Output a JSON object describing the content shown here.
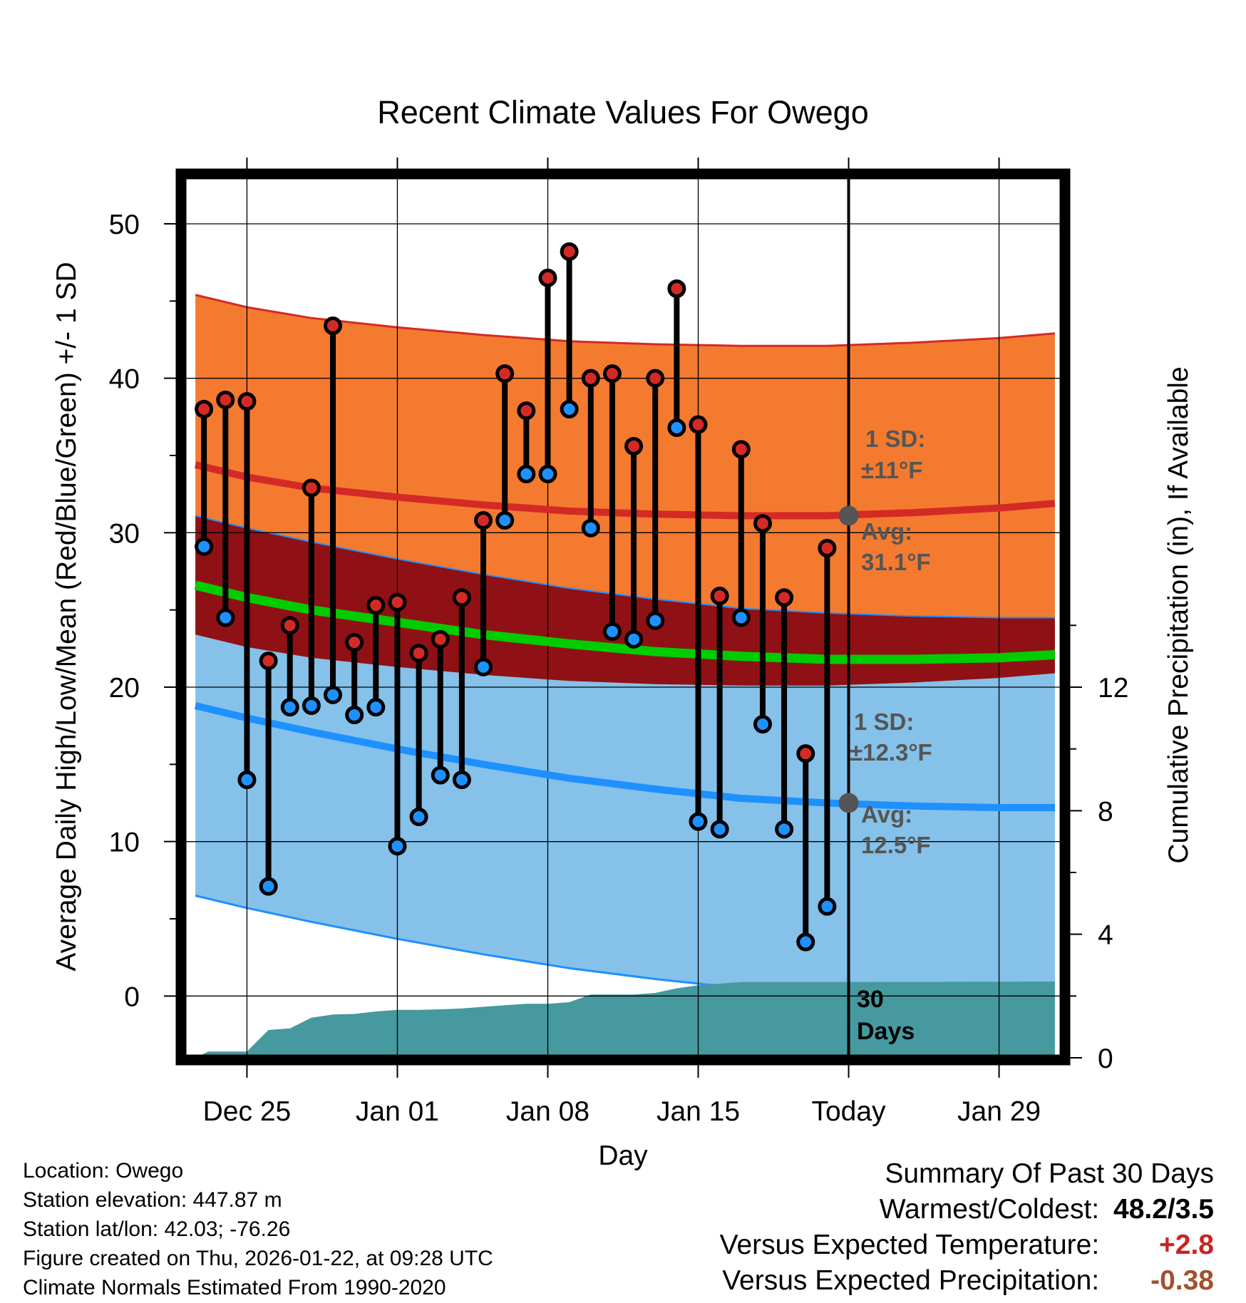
{
  "title": "Recent Climate Values For Owego",
  "chart_data": {
    "type": "range-bar-with-bands",
    "title": "Recent Climate Values For Owego",
    "xlabel": "Day",
    "ylabel_left": "Average Daily High/Low/Mean (Red/Blue/Green) +/- 1 SD",
    "ylabel_right": "Cumulative Precipitation (in), If Available",
    "x_ticks": [
      {
        "day": 3,
        "label": "Dec 25"
      },
      {
        "day": 10,
        "label": "Jan 01"
      },
      {
        "day": 17,
        "label": "Jan 08"
      },
      {
        "day": 24,
        "label": "Jan 15"
      },
      {
        "day": 31,
        "label": "Today"
      },
      {
        "day": 38,
        "label": "Jan 29"
      }
    ],
    "xlim": [
      0,
      41
    ],
    "ylim_left": [
      -4,
      53
    ],
    "y_ticks_left": [
      0,
      10,
      20,
      30,
      40,
      50
    ],
    "ylim_right": [
      0,
      28.5
    ],
    "y_ticks_right": [
      0,
      4,
      8,
      12
    ],
    "today_day": 31,
    "daily": [
      {
        "day": 1,
        "high": 38.0,
        "low": 29.1
      },
      {
        "day": 2,
        "high": 38.6,
        "low": 24.5
      },
      {
        "day": 3,
        "high": 38.5,
        "low": 14.0
      },
      {
        "day": 4,
        "high": 21.7,
        "low": 7.1
      },
      {
        "day": 5,
        "high": 24.0,
        "low": 18.7
      },
      {
        "day": 6,
        "high": 32.9,
        "low": 18.8
      },
      {
        "day": 7,
        "high": 43.4,
        "low": 19.5
      },
      {
        "day": 8,
        "high": 22.9,
        "low": 18.2
      },
      {
        "day": 9,
        "high": 25.3,
        "low": 18.7
      },
      {
        "day": 10,
        "high": 25.5,
        "low": 9.7
      },
      {
        "day": 11,
        "high": 22.2,
        "low": 11.6
      },
      {
        "day": 12,
        "high": 23.1,
        "low": 14.3
      },
      {
        "day": 13,
        "high": 25.8,
        "low": 14.0
      },
      {
        "day": 14,
        "high": 30.8,
        "low": 21.3
      },
      {
        "day": 15,
        "high": 40.3,
        "low": 30.8
      },
      {
        "day": 16,
        "high": 37.9,
        "low": 33.8
      },
      {
        "day": 17,
        "high": 46.5,
        "low": 33.8
      },
      {
        "day": 18,
        "high": 48.2,
        "low": 38.0
      },
      {
        "day": 19,
        "high": 40.0,
        "low": 30.3
      },
      {
        "day": 20,
        "high": 40.3,
        "low": 23.6
      },
      {
        "day": 21,
        "high": 35.6,
        "low": 23.1
      },
      {
        "day": 22,
        "high": 40.0,
        "low": 24.3
      },
      {
        "day": 23,
        "high": 45.8,
        "low": 36.8
      },
      {
        "day": 24,
        "high": 37.0,
        "low": 11.3
      },
      {
        "day": 25,
        "high": 25.9,
        "low": 10.8
      },
      {
        "day": 26,
        "high": 35.4,
        "low": 24.5
      },
      {
        "day": 27,
        "high": 30.6,
        "low": 17.6
      },
      {
        "day": 28,
        "high": 25.8,
        "low": 10.8
      },
      {
        "day": 29,
        "high": 15.7,
        "low": 3.5
      },
      {
        "day": 30,
        "high": 29.0,
        "low": 5.8
      }
    ],
    "normals": {
      "days": [
        0.6,
        3,
        6,
        10,
        14,
        18,
        22,
        26,
        30,
        34,
        38,
        40.6
      ],
      "high_mean": [
        34.4,
        33.6,
        32.9,
        32.3,
        31.8,
        31.4,
        31.2,
        31.1,
        31.1,
        31.3,
        31.6,
        31.9
      ],
      "low_mean": [
        18.8,
        18.0,
        17.1,
        16.0,
        15.0,
        14.1,
        13.4,
        12.8,
        12.5,
        12.3,
        12.2,
        12.2
      ],
      "avg_mean": [
        26.6,
        25.8,
        25.0,
        24.2,
        23.4,
        22.8,
        22.3,
        22.0,
        21.8,
        21.8,
        21.9,
        22.1
      ],
      "high_sd": 11,
      "low_sd": 12.3
    },
    "precip_days": [
      0.6,
      1.2,
      3.0,
      4.0,
      5.0,
      6.0,
      7.0,
      8.0,
      9.0,
      10.0,
      11.0,
      12.0,
      13.0,
      14.0,
      15.0,
      16.0,
      17.0,
      18.0,
      19.0,
      20.0,
      21.0,
      22.0,
      23.0,
      24.0,
      25.0,
      26.0,
      27.0,
      28.0,
      29.0,
      30.0,
      31.0,
      40.6
    ],
    "precip_cum": [
      0.0,
      0.2,
      0.2,
      0.9,
      0.95,
      1.3,
      1.4,
      1.42,
      1.5,
      1.55,
      1.55,
      1.57,
      1.6,
      1.65,
      1.7,
      1.75,
      1.75,
      1.8,
      2.05,
      2.05,
      2.05,
      2.1,
      2.25,
      2.35,
      2.4,
      2.45,
      2.45,
      2.45,
      2.45,
      2.45,
      2.45,
      2.47
    ],
    "annotations": {
      "high_sd_line1": "1 SD:",
      "high_sd_line2": "±11°F",
      "high_avg_line1": "Avg:",
      "high_avg_line2": "31.1°F",
      "low_sd_line1": "1 SD:",
      "low_sd_line2": "±12.3°F",
      "low_avg_line1": "Avg:",
      "low_avg_line2": "12.5°F",
      "window_line1": "30",
      "window_line2": "Days"
    },
    "colors": {
      "high_band": "#f47a30",
      "high_line": "#d42a26",
      "overlap_band": "#8f1115",
      "low_band": "#85c1e9",
      "low_line": "#1e90ff",
      "mean_line": "#00cc00",
      "precip": "#46999f",
      "high_dot": "#d42a26",
      "low_dot": "#1e90ff",
      "annotation": "#555555"
    }
  },
  "footer": {
    "location": "Location: Owego",
    "elevation": "Station elevation: 447.87 m",
    "latlon": "Station lat/lon: 42.03; -76.26",
    "created": "Figure created on Thu, 2026-01-22, at 09:28 UTC",
    "normals": "Climate Normals Estimated From 1990-2020"
  },
  "summary": {
    "heading": "Summary Of Past 30 Days",
    "warm_cold_label": "Warmest/Coldest:",
    "warm_cold_value": "48.2/3.5",
    "temp_label": "Versus Expected Temperature:",
    "temp_value": "+2.8",
    "temp_color": "#cc2222",
    "precip_label": "Versus Expected Precipitation:",
    "precip_value": "-0.38",
    "precip_color": "#a0522d"
  }
}
